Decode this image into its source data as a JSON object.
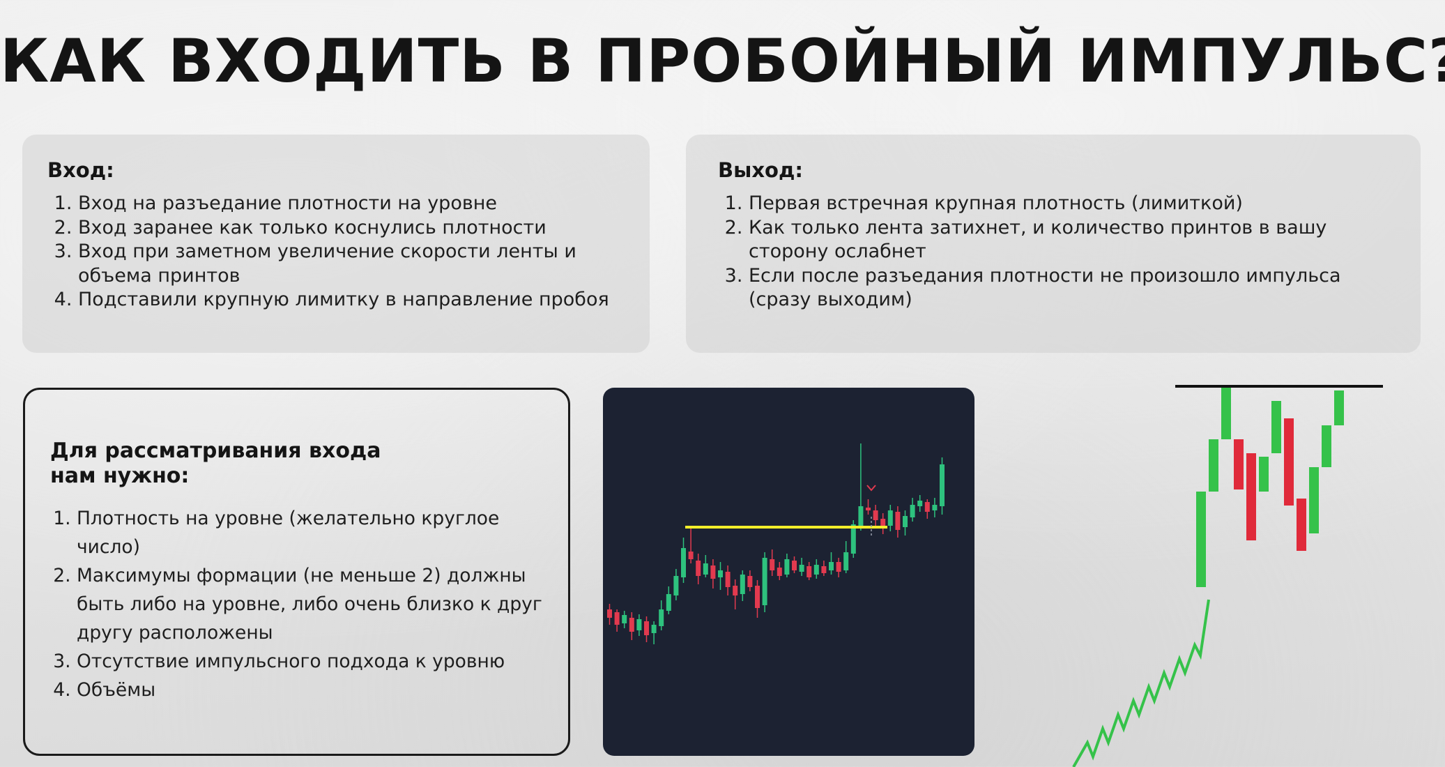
{
  "title": "КАК ВХОДИТЬ В ПРОБОЙНЫЙ ИМПУЛЬС?",
  "entry": {
    "heading": "Вход:",
    "items": [
      "Вход на разъедание плотности на уровне",
      "Вход заранее как только коснулись плотности",
      "Вход при заметном увеличение скорости ленты и объема принтов",
      "Подставили крупную лимитку в направление пробоя"
    ]
  },
  "exit": {
    "heading": "Выход:",
    "items": [
      "Первая встречная крупная плотность (лимиткой)",
      "Как только лента затихнет, и количество принтов в вашу сторону ослабнет",
      "Если после разъедания плотности не произошло импульса (сразу выходим)"
    ]
  },
  "requirements": {
    "heading_line1": "Для рассматривания входа",
    "heading_line2": "нам нужно:",
    "items": [
      "Плотность на уровне (желательно круглое число)",
      "Максимумы формации (не меньше 2) должны быть либо на уровне, либо очень близко к друг другу расположены",
      "Отсутствие импульсного подхода к уровню",
      "Объёмы"
    ]
  },
  "colors": {
    "bull": "#2ec27e",
    "bear": "#e23a4f",
    "level": "#f2ee2a",
    "chart_bg": "#1c2232",
    "pattern_bull": "#35c24a",
    "pattern_bear": "#e02a3a"
  }
}
